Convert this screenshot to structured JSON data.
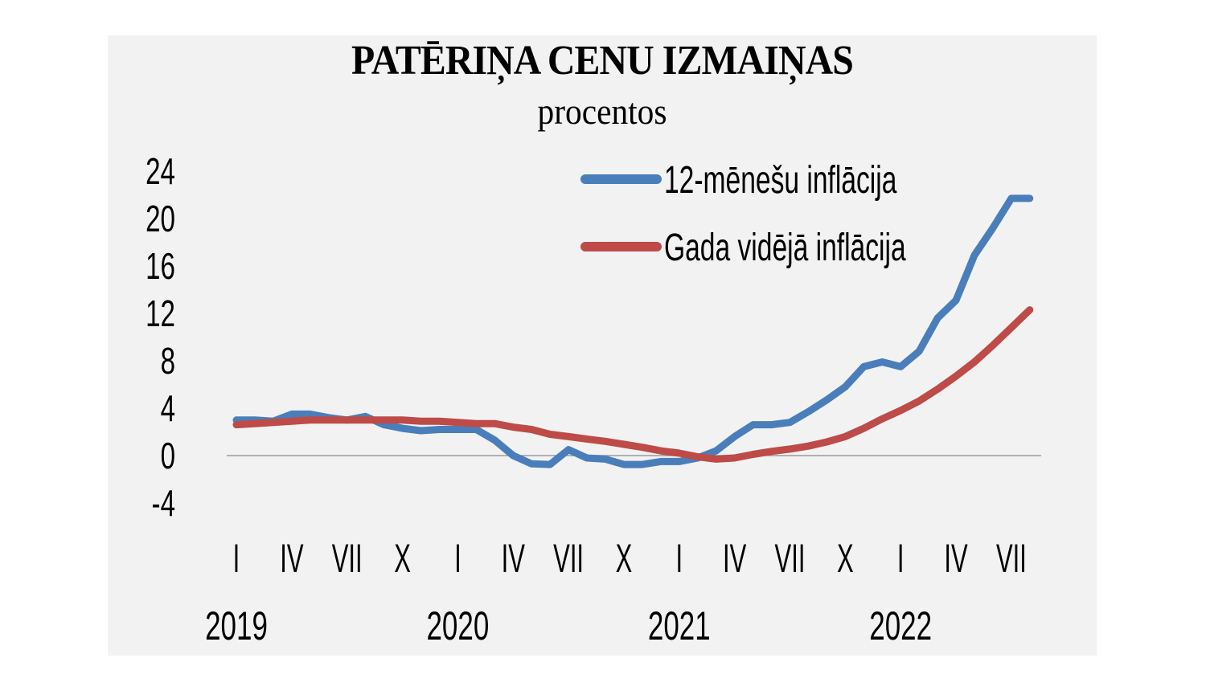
{
  "chart_data": {
    "type": "line",
    "title": "PATĒRIŅA CENU IZMAIŅAS",
    "subtitle": "procentos",
    "xlabel": "",
    "ylabel": "",
    "ylim": [
      -4,
      24
    ],
    "yticks": [
      24,
      20,
      16,
      12,
      8,
      4,
      0,
      -4
    ],
    "x_month_ticks": [
      "I",
      "IV",
      "VII",
      "X",
      "I",
      "IV",
      "VII",
      "X",
      "I",
      "IV",
      "VII",
      "X",
      "I",
      "IV",
      "VII"
    ],
    "x_year_labels": [
      "2019",
      "2020",
      "2021",
      "2022"
    ],
    "x": [
      "2019-01",
      "2019-02",
      "2019-03",
      "2019-04",
      "2019-05",
      "2019-06",
      "2019-07",
      "2019-08",
      "2019-09",
      "2019-10",
      "2019-11",
      "2019-12",
      "2020-01",
      "2020-02",
      "2020-03",
      "2020-04",
      "2020-05",
      "2020-06",
      "2020-07",
      "2020-08",
      "2020-09",
      "2020-10",
      "2020-11",
      "2020-12",
      "2021-01",
      "2021-02",
      "2021-03",
      "2021-04",
      "2021-05",
      "2021-06",
      "2021-07",
      "2021-08",
      "2021-09",
      "2021-10",
      "2021-11",
      "2021-12",
      "2022-01",
      "2022-02",
      "2022-03",
      "2022-04",
      "2022-05",
      "2022-06",
      "2022-07",
      "2022-08"
    ],
    "series": [
      {
        "name": "12-mēnešu inflācija",
        "color": "#4a7ebb",
        "values": [
          3.0,
          3.0,
          2.9,
          3.5,
          3.5,
          3.2,
          3.0,
          3.3,
          2.6,
          2.3,
          2.1,
          2.2,
          2.2,
          2.2,
          1.3,
          0.0,
          -0.7,
          -0.75,
          0.5,
          -0.2,
          -0.3,
          -0.75,
          -0.75,
          -0.5,
          -0.5,
          -0.2,
          0.4,
          1.6,
          2.6,
          2.6,
          2.8,
          3.7,
          4.7,
          5.8,
          7.5,
          7.9,
          7.5,
          8.8,
          11.6,
          13.1,
          16.9,
          19.2,
          21.7,
          21.7
        ]
      },
      {
        "name": "Gada vidējā inflācija",
        "color": "#be4b48",
        "values": [
          2.6,
          2.7,
          2.8,
          2.9,
          3.0,
          3.0,
          3.0,
          3.0,
          3.0,
          3.0,
          2.9,
          2.9,
          2.8,
          2.7,
          2.7,
          2.4,
          2.2,
          1.8,
          1.6,
          1.4,
          1.2,
          0.95,
          0.7,
          0.4,
          0.2,
          -0.1,
          -0.3,
          -0.2,
          0.1,
          0.35,
          0.55,
          0.8,
          1.15,
          1.6,
          2.3,
          3.1,
          3.8,
          4.6,
          5.6,
          6.7,
          7.9,
          9.3,
          10.8,
          12.3
        ]
      }
    ],
    "grid": false,
    "legend_position": "top-right"
  }
}
